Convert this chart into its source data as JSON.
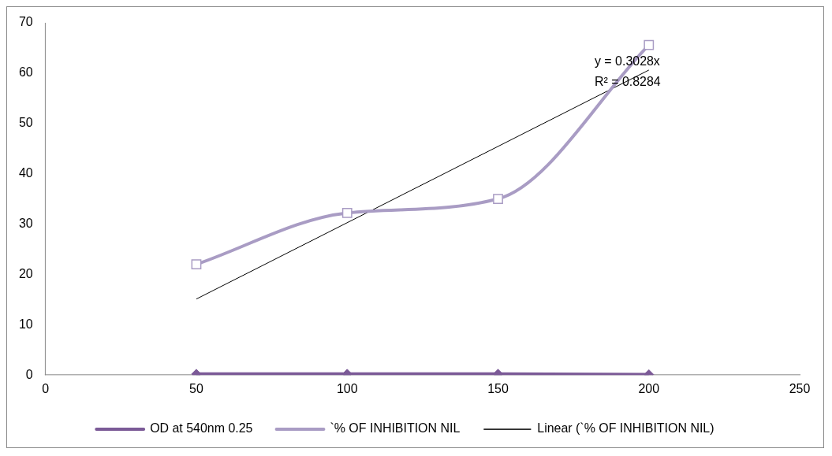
{
  "chart_data": {
    "type": "line",
    "x": [
      50,
      100,
      150,
      200
    ],
    "xlim": [
      0,
      250
    ],
    "xticks": [
      0,
      50,
      100,
      150,
      200,
      250
    ],
    "ylim": [
      0,
      70
    ],
    "yticks": [
      0,
      10,
      20,
      30,
      40,
      50,
      60,
      70
    ],
    "grid": false,
    "legend": "bottom",
    "series": [
      {
        "name": "OD at 540nm 0.25",
        "color": "#7b5a97",
        "marker": "diamond",
        "values": [
          0.2,
          0.2,
          0.2,
          0.1
        ]
      },
      {
        "name": "`% OF INHIBITION NIL",
        "color": "#a99cc4",
        "marker": "square",
        "values": [
          22,
          32.2,
          35,
          65.6
        ]
      },
      {
        "name": "Linear (`% OF INHIBITION NIL)",
        "type": "line",
        "color": "#000000",
        "marker": "none",
        "x": [
          50,
          200
        ],
        "values": [
          15.1,
          60.6
        ]
      }
    ],
    "annotations": [
      "y = 0.3028x",
      "R² = 0.8284"
    ]
  }
}
